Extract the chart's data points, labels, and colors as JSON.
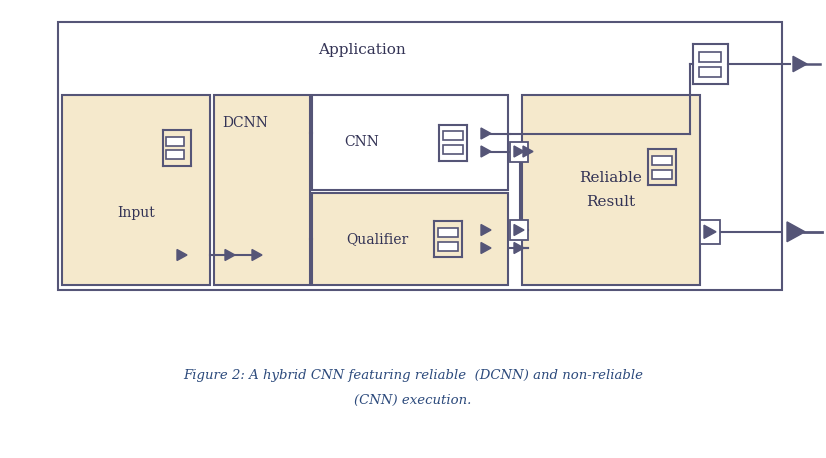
{
  "bg_color": "#ffffff",
  "box_fill": "#f5e9cc",
  "box_edge": "#555577",
  "text_color": "#333355",
  "caption_color": "#2c4a7c",
  "caption_line1": "Figure 2: A hybrid CNN featuring reliable  (DCNN) and non-reliable",
  "caption_line2": "(CNN) execution.",
  "app_label": "Application",
  "input_label": "Input",
  "dcnn_label": "DCNN",
  "cnn_label": "CNN",
  "qualifier_label": "Qualifier",
  "reliable_label1": "Reliable",
  "reliable_label2": "Result"
}
